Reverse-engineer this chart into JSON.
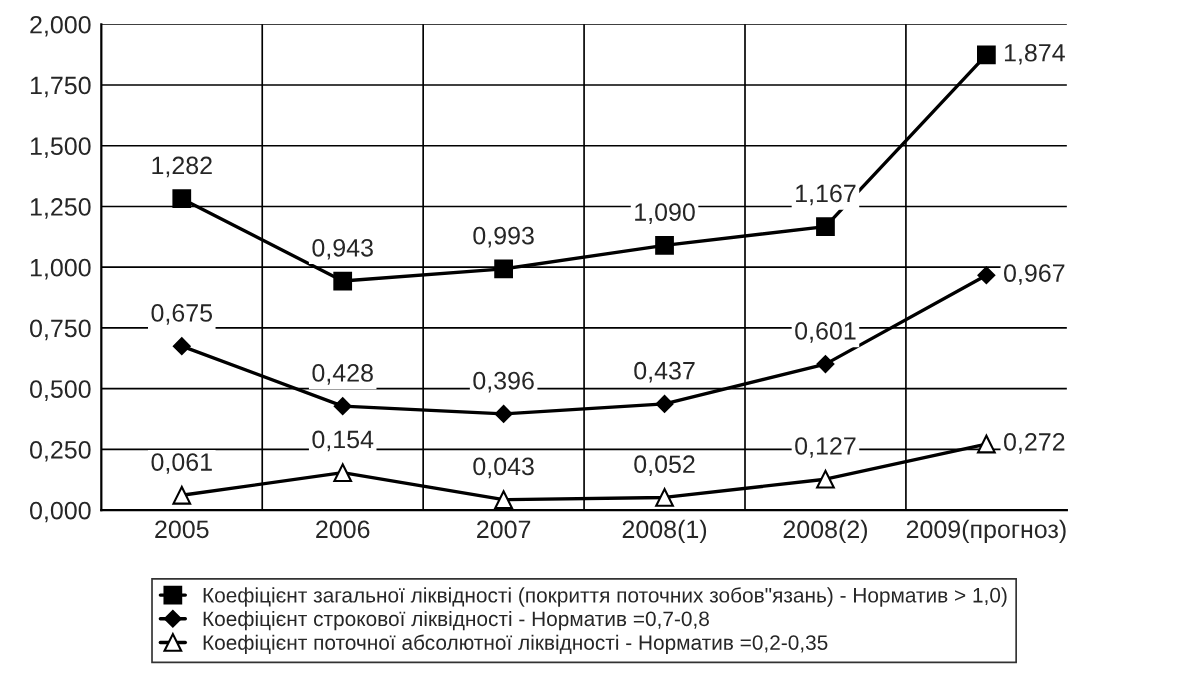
{
  "chart_data": {
    "type": "line",
    "categories": [
      "2005",
      "2006",
      "2007",
      "2008(1)",
      "2008(2)",
      "2009(прогноз)"
    ],
    "series": [
      {
        "name": "Коефіцієнт загальної ліквідності (покриття поточних зобов\"язань) - Норматив > 1,0)",
        "color": "#000000",
        "marker": "square",
        "values": [
          1.282,
          0.943,
          0.993,
          1.09,
          1.167,
          1.874
        ],
        "value_labels": [
          "1,282",
          "0,943",
          "0,993",
          "1,090",
          "1,167",
          "1,874"
        ]
      },
      {
        "name": "Коефіцієнт строкової ліквідності - Норматив =0,7-0,8",
        "color": "#000000",
        "marker": "diamond",
        "values": [
          0.675,
          0.428,
          0.396,
          0.437,
          0.601,
          0.967
        ],
        "value_labels": [
          "0,675",
          "0,428",
          "0,396",
          "0,437",
          "0,601",
          "0,967"
        ]
      },
      {
        "name": "Коефіцієнт поточної абсолютної ліквідності - Норматив =0,2-0,35",
        "color": "#000000",
        "marker": "triangle",
        "values": [
          0.061,
          0.154,
          0.043,
          0.052,
          0.127,
          0.272
        ],
        "value_labels": [
          "0,061",
          "0,154",
          "0,043",
          "0,052",
          "0,127",
          "0,272"
        ]
      }
    ],
    "ylim": [
      0,
      2
    ],
    "yticks": [
      {
        "value": 0,
        "label": "0,000"
      },
      {
        "value": 0.25,
        "label": "0,250"
      },
      {
        "value": 0.5,
        "label": "0,500"
      },
      {
        "value": 0.75,
        "label": "0,750"
      },
      {
        "value": 1,
        "label": "1,000"
      },
      {
        "value": 1.25,
        "label": "1,250"
      },
      {
        "value": 1.5,
        "label": "1,500"
      },
      {
        "value": 1.75,
        "label": "1,750"
      },
      {
        "value": 2,
        "label": "2,000"
      }
    ],
    "grid": true,
    "legend": "bottom",
    "line_style": "solid"
  }
}
